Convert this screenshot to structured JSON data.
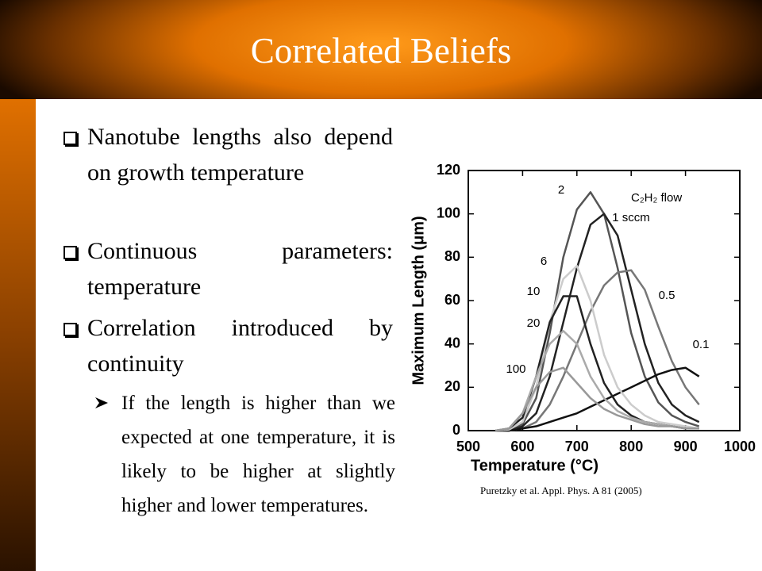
{
  "title": "Correlated Beliefs",
  "bullets": [
    "Nanotube lengths also depend on growth temperature",
    "Continuous parameters: temperature",
    "Correlation introduced by continuity"
  ],
  "sub_bullets": [
    "If the length is higher than we expected at one temperature, it is likely to be higher at slightly higher and lower temperatures."
  ],
  "citation": "Puretzky et al. Appl. Phys. A 81 (2005)",
  "chart_data": {
    "type": "line",
    "xlabel": "Temperature (°C)",
    "ylabel": "Maximum Length (μm)",
    "annotation": "C₂H₂ flow",
    "xlim": [
      500,
      1000
    ],
    "xticks": [
      500,
      600,
      700,
      800,
      900,
      1000
    ],
    "ylim": [
      0,
      120
    ],
    "yticks": [
      0,
      20,
      40,
      60,
      80,
      100,
      120
    ],
    "x": [
      550,
      575,
      600,
      625,
      650,
      675,
      700,
      725,
      750,
      775,
      800,
      825,
      850,
      875,
      900,
      925
    ],
    "series": [
      {
        "name": "2",
        "color": "#555555",
        "values": [
          0,
          0.5,
          3,
          15,
          45,
          80,
          102,
          110,
          100,
          75,
          45,
          25,
          13,
          7,
          4,
          2
        ]
      },
      {
        "name": "1 sccm",
        "color": "#222222",
        "values": [
          0,
          0,
          2,
          8,
          25,
          50,
          75,
          95,
          100,
          90,
          65,
          40,
          22,
          12,
          7,
          4
        ]
      },
      {
        "name": "0.5",
        "color": "#777777",
        "values": [
          0,
          0,
          1,
          4,
          12,
          25,
          40,
          55,
          67,
          73,
          74,
          65,
          48,
          32,
          20,
          12
        ]
      },
      {
        "name": "0.1",
        "color": "#111111",
        "values": [
          0,
          0,
          1,
          2,
          4,
          6,
          8,
          11,
          14,
          17,
          20,
          23,
          26,
          28,
          29,
          25
        ]
      },
      {
        "name": "6",
        "color": "#cccccc",
        "values": [
          0,
          0.5,
          4,
          20,
          50,
          70,
          76,
          60,
          35,
          20,
          12,
          7,
          4,
          3,
          2,
          1
        ]
      },
      {
        "name": "10",
        "color": "#222222",
        "values": [
          0,
          1,
          6,
          25,
          50,
          62,
          62,
          40,
          22,
          12,
          7,
          4,
          3,
          2,
          1,
          1
        ]
      },
      {
        "name": "20",
        "color": "#aaaaaa",
        "values": [
          0,
          1,
          8,
          25,
          40,
          46,
          40,
          25,
          15,
          9,
          6,
          4,
          3,
          2,
          1,
          1
        ]
      },
      {
        "name": "100",
        "color": "#999999",
        "values": [
          0,
          1,
          8,
          20,
          27,
          29,
          22,
          15,
          10,
          7,
          5,
          3,
          2,
          2,
          1,
          1
        ]
      }
    ]
  }
}
